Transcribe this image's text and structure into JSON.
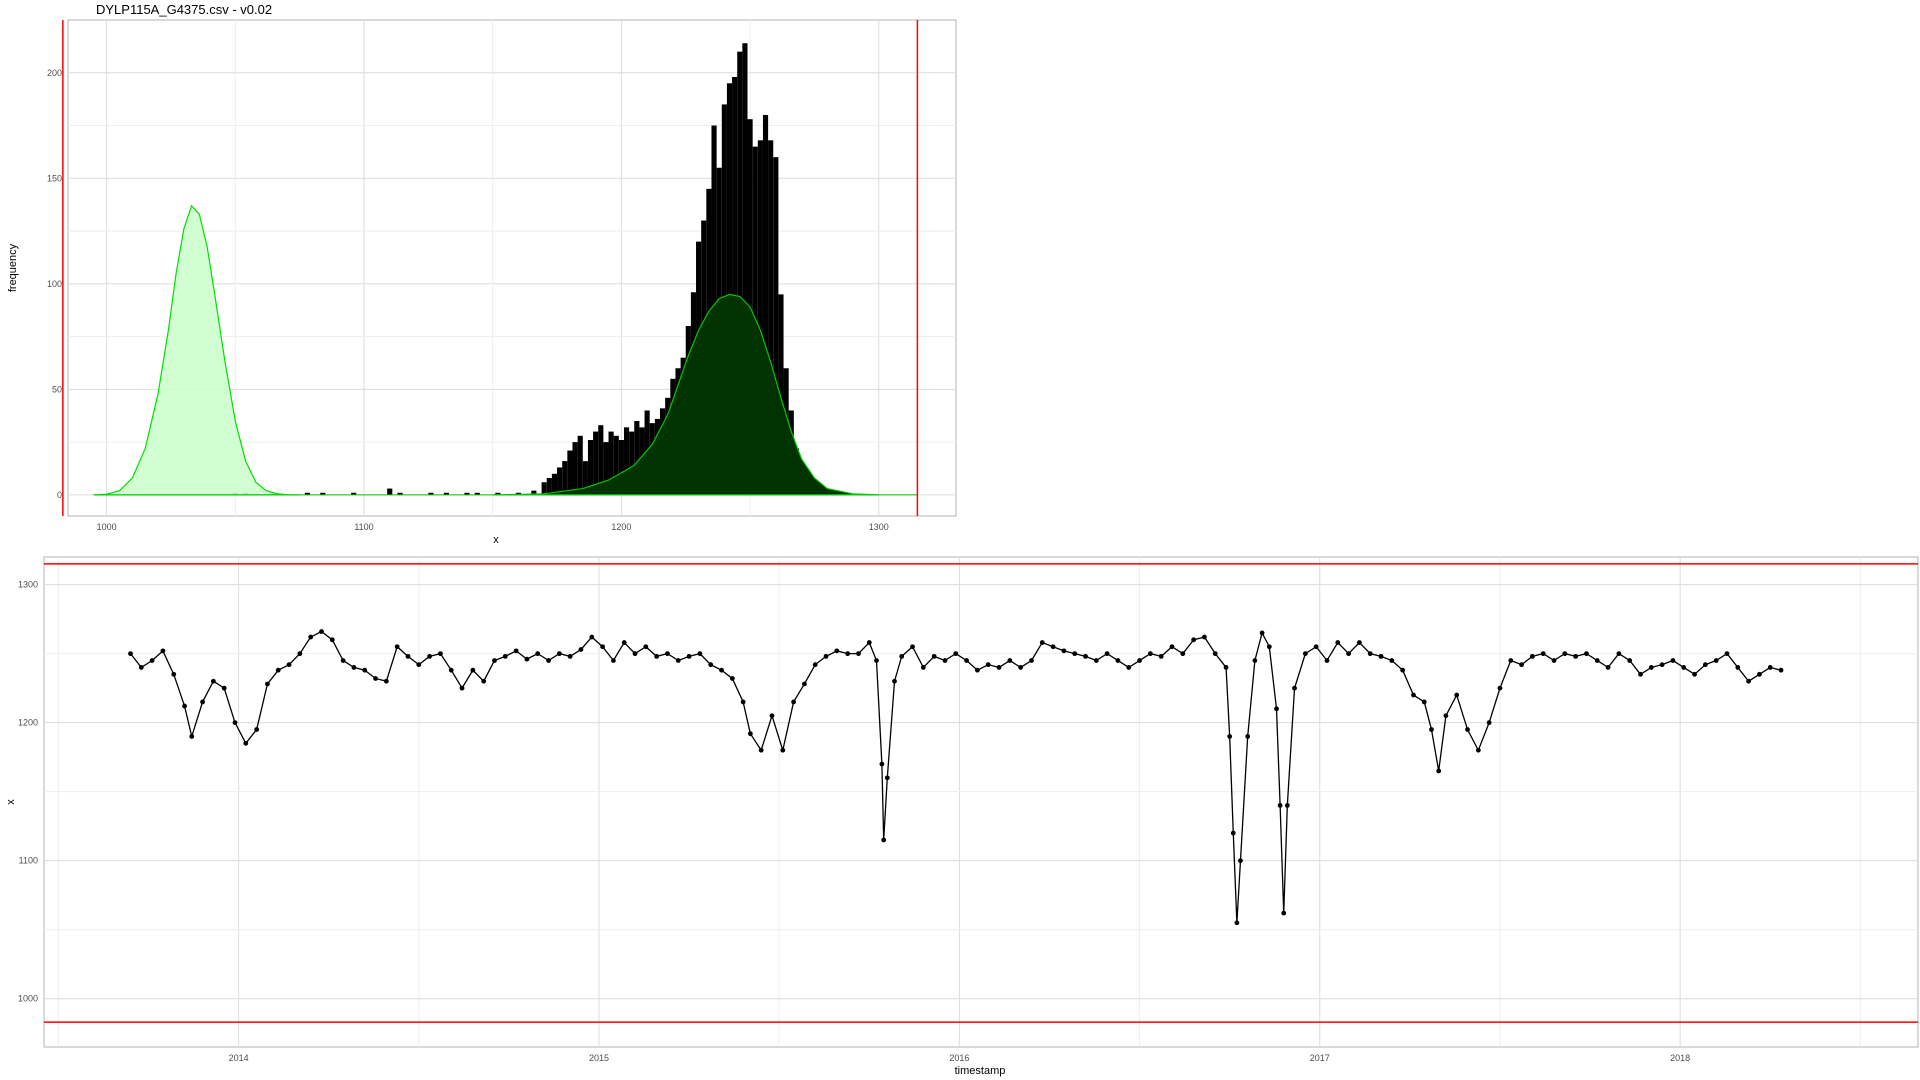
{
  "page_title": "DYLP115A_G4375.csv - v0.02",
  "colors": {
    "bars": "#000000",
    "density_low_fill": "#ccffcc",
    "density_low_line": "#00e000",
    "density_high_fill": "#003300",
    "density_high_line": "#00c800",
    "threshold": "#ff0000",
    "series": "#000000",
    "grid": "#dcdcdc",
    "panel_border": "#b3b3b3"
  },
  "chart_data": [
    {
      "type": "bar",
      "title": "DYLP115A_G4375.csv - v0.02",
      "xlabel": "x",
      "ylabel": "frequency",
      "xlim": [
        985,
        1330
      ],
      "ylim": [
        -10,
        225
      ],
      "x_ticks": [
        1000,
        1100,
        1200,
        1300
      ],
      "y_ticks": [
        0,
        50,
        100,
        150,
        200
      ],
      "grid": true,
      "bin_width": 2,
      "thresholds_x": [
        983,
        1315
      ],
      "bins": [
        [
          1050,
          1
        ],
        [
          1054,
          1
        ],
        [
          1064,
          1
        ],
        [
          1078,
          1
        ],
        [
          1084,
          1
        ],
        [
          1096,
          1
        ],
        [
          1110,
          3
        ],
        [
          1114,
          1
        ],
        [
          1126,
          1
        ],
        [
          1132,
          1
        ],
        [
          1140,
          1
        ],
        [
          1144,
          1
        ],
        [
          1152,
          1
        ],
        [
          1160,
          1
        ],
        [
          1166,
          2
        ],
        [
          1170,
          6
        ],
        [
          1172,
          8
        ],
        [
          1174,
          10
        ],
        [
          1176,
          13
        ],
        [
          1178,
          16
        ],
        [
          1180,
          21
        ],
        [
          1182,
          25
        ],
        [
          1184,
          28
        ],
        [
          1186,
          16
        ],
        [
          1188,
          26
        ],
        [
          1190,
          30
        ],
        [
          1192,
          33
        ],
        [
          1194,
          25
        ],
        [
          1196,
          30
        ],
        [
          1198,
          28
        ],
        [
          1200,
          26
        ],
        [
          1202,
          32
        ],
        [
          1204,
          30
        ],
        [
          1206,
          35
        ],
        [
          1208,
          32
        ],
        [
          1210,
          40
        ],
        [
          1212,
          34
        ],
        [
          1214,
          36
        ],
        [
          1216,
          41
        ],
        [
          1218,
          46
        ],
        [
          1220,
          55
        ],
        [
          1222,
          60
        ],
        [
          1224,
          65
        ],
        [
          1226,
          80
        ],
        [
          1228,
          96
        ],
        [
          1230,
          120
        ],
        [
          1232,
          130
        ],
        [
          1234,
          145
        ],
        [
          1236,
          175
        ],
        [
          1238,
          155
        ],
        [
          1240,
          185
        ],
        [
          1242,
          195
        ],
        [
          1244,
          198
        ],
        [
          1246,
          210
        ],
        [
          1248,
          214
        ],
        [
          1250,
          178
        ],
        [
          1252,
          165
        ],
        [
          1254,
          168
        ],
        [
          1256,
          180
        ],
        [
          1258,
          168
        ],
        [
          1260,
          160
        ],
        [
          1262,
          95
        ],
        [
          1264,
          60
        ],
        [
          1266,
          40
        ],
        [
          1268,
          22
        ],
        [
          1270,
          10
        ],
        [
          1272,
          4
        ],
        [
          1274,
          1
        ]
      ],
      "density_series": [
        {
          "name": "",
          "points": [
            [
              995,
              0
            ],
            [
              1000,
              0.3
            ],
            [
              1005,
              2
            ],
            [
              1010,
              8
            ],
            [
              1015,
              22
            ],
            [
              1020,
              48
            ],
            [
              1024,
              78
            ],
            [
              1027,
              105
            ],
            [
              1030,
              126
            ],
            [
              1033,
              137
            ],
            [
              1036,
              133
            ],
            [
              1039,
              118
            ],
            [
              1042,
              95
            ],
            [
              1046,
              63
            ],
            [
              1050,
              35
            ],
            [
              1054,
              16
            ],
            [
              1058,
              6
            ],
            [
              1062,
              2
            ],
            [
              1066,
              0.6
            ],
            [
              1070,
              0.1
            ],
            [
              1075,
              0
            ]
          ]
        },
        {
          "name": "",
          "points": [
            [
              1150,
              0
            ],
            [
              1170,
              0.5
            ],
            [
              1185,
              3
            ],
            [
              1195,
              7
            ],
            [
              1205,
              14
            ],
            [
              1212,
              24
            ],
            [
              1218,
              38
            ],
            [
              1222,
              52
            ],
            [
              1226,
              66
            ],
            [
              1230,
              78
            ],
            [
              1234,
              87
            ],
            [
              1238,
              93
            ],
            [
              1242,
              95
            ],
            [
              1246,
              94
            ],
            [
              1250,
              89
            ],
            [
              1254,
              78
            ],
            [
              1258,
              63
            ],
            [
              1262,
              46
            ],
            [
              1266,
              30
            ],
            [
              1270,
              17
            ],
            [
              1275,
              8
            ],
            [
              1280,
              3
            ],
            [
              1290,
              0.5
            ],
            [
              1300,
              0
            ]
          ]
        }
      ]
    },
    {
      "type": "line",
      "xlabel": "timestamp",
      "ylabel": "x",
      "xlim": [
        2013.46,
        2018.66
      ],
      "ylim": [
        965,
        1320
      ],
      "x_ticks": [
        2014,
        2015,
        2016,
        2017,
        2018
      ],
      "y_ticks": [
        1000,
        1100,
        1200,
        1300
      ],
      "grid": true,
      "thresholds_y": [
        983,
        1315
      ],
      "series": [
        {
          "name": "",
          "points": [
            [
              2013.7,
              1250
            ],
            [
              2013.73,
              1240
            ],
            [
              2013.76,
              1245
            ],
            [
              2013.79,
              1252
            ],
            [
              2013.82,
              1235
            ],
            [
              2013.85,
              1212
            ],
            [
              2013.87,
              1190
            ],
            [
              2013.9,
              1215
            ],
            [
              2013.93,
              1230
            ],
            [
              2013.96,
              1225
            ],
            [
              2013.99,
              1200
            ],
            [
              2014.02,
              1185
            ],
            [
              2014.05,
              1195
            ],
            [
              2014.08,
              1228
            ],
            [
              2014.11,
              1238
            ],
            [
              2014.14,
              1242
            ],
            [
              2014.17,
              1250
            ],
            [
              2014.2,
              1262
            ],
            [
              2014.23,
              1266
            ],
            [
              2014.26,
              1260
            ],
            [
              2014.29,
              1245
            ],
            [
              2014.32,
              1240
            ],
            [
              2014.35,
              1238
            ],
            [
              2014.38,
              1232
            ],
            [
              2014.41,
              1230
            ],
            [
              2014.44,
              1255
            ],
            [
              2014.47,
              1248
            ],
            [
              2014.5,
              1242
            ],
            [
              2014.53,
              1248
            ],
            [
              2014.56,
              1250
            ],
            [
              2014.59,
              1238
            ],
            [
              2014.62,
              1225
            ],
            [
              2014.65,
              1238
            ],
            [
              2014.68,
              1230
            ],
            [
              2014.71,
              1245
            ],
            [
              2014.74,
              1248
            ],
            [
              2014.77,
              1252
            ],
            [
              2014.8,
              1246
            ],
            [
              2014.83,
              1250
            ],
            [
              2014.86,
              1245
            ],
            [
              2014.89,
              1250
            ],
            [
              2014.92,
              1248
            ],
            [
              2014.95,
              1253
            ],
            [
              2014.98,
              1262
            ],
            [
              2015.01,
              1255
            ],
            [
              2015.04,
              1245
            ],
            [
              2015.07,
              1258
            ],
            [
              2015.1,
              1250
            ],
            [
              2015.13,
              1255
            ],
            [
              2015.16,
              1248
            ],
            [
              2015.19,
              1250
            ],
            [
              2015.22,
              1245
            ],
            [
              2015.25,
              1248
            ],
            [
              2015.28,
              1250
            ],
            [
              2015.31,
              1242
            ],
            [
              2015.34,
              1238
            ],
            [
              2015.37,
              1232
            ],
            [
              2015.4,
              1215
            ],
            [
              2015.42,
              1192
            ],
            [
              2015.45,
              1180
            ],
            [
              2015.48,
              1205
            ],
            [
              2015.51,
              1180
            ],
            [
              2015.54,
              1215
            ],
            [
              2015.57,
              1228
            ],
            [
              2015.6,
              1242
            ],
            [
              2015.63,
              1248
            ],
            [
              2015.66,
              1252
            ],
            [
              2015.69,
              1250
            ],
            [
              2015.72,
              1250
            ],
            [
              2015.75,
              1258
            ],
            [
              2015.77,
              1245
            ],
            [
              2015.785,
              1170
            ],
            [
              2015.79,
              1115
            ],
            [
              2015.8,
              1160
            ],
            [
              2015.82,
              1230
            ],
            [
              2015.84,
              1248
            ],
            [
              2015.87,
              1255
            ],
            [
              2015.9,
              1240
            ],
            [
              2015.93,
              1248
            ],
            [
              2015.96,
              1245
            ],
            [
              2015.99,
              1250
            ],
            [
              2016.02,
              1245
            ],
            [
              2016.05,
              1238
            ],
            [
              2016.08,
              1242
            ],
            [
              2016.11,
              1240
            ],
            [
              2016.14,
              1245
            ],
            [
              2016.17,
              1240
            ],
            [
              2016.2,
              1245
            ],
            [
              2016.23,
              1258
            ],
            [
              2016.26,
              1255
            ],
            [
              2016.29,
              1252
            ],
            [
              2016.32,
              1250
            ],
            [
              2016.35,
              1248
            ],
            [
              2016.38,
              1245
            ],
            [
              2016.41,
              1250
            ],
            [
              2016.44,
              1245
            ],
            [
              2016.47,
              1240
            ],
            [
              2016.5,
              1245
            ],
            [
              2016.53,
              1250
            ],
            [
              2016.56,
              1248
            ],
            [
              2016.59,
              1255
            ],
            [
              2016.62,
              1250
            ],
            [
              2016.65,
              1260
            ],
            [
              2016.68,
              1262
            ],
            [
              2016.71,
              1250
            ],
            [
              2016.74,
              1240
            ],
            [
              2016.75,
              1190
            ],
            [
              2016.76,
              1120
            ],
            [
              2016.77,
              1055
            ],
            [
              2016.78,
              1100
            ],
            [
              2016.8,
              1190
            ],
            [
              2016.82,
              1245
            ],
            [
              2016.84,
              1265
            ],
            [
              2016.86,
              1255
            ],
            [
              2016.88,
              1210
            ],
            [
              2016.89,
              1140
            ],
            [
              2016.9,
              1062
            ],
            [
              2016.91,
              1140
            ],
            [
              2016.93,
              1225
            ],
            [
              2016.96,
              1250
            ],
            [
              2016.99,
              1255
            ],
            [
              2017.02,
              1245
            ],
            [
              2017.05,
              1258
            ],
            [
              2017.08,
              1250
            ],
            [
              2017.11,
              1258
            ],
            [
              2017.14,
              1250
            ],
            [
              2017.17,
              1248
            ],
            [
              2017.2,
              1245
            ],
            [
              2017.23,
              1238
            ],
            [
              2017.26,
              1220
            ],
            [
              2017.29,
              1215
            ],
            [
              2017.31,
              1195
            ],
            [
              2017.33,
              1165
            ],
            [
              2017.35,
              1205
            ],
            [
              2017.38,
              1220
            ],
            [
              2017.41,
              1195
            ],
            [
              2017.44,
              1180
            ],
            [
              2017.47,
              1200
            ],
            [
              2017.5,
              1225
            ],
            [
              2017.53,
              1245
            ],
            [
              2017.56,
              1242
            ],
            [
              2017.59,
              1248
            ],
            [
              2017.62,
              1250
            ],
            [
              2017.65,
              1245
            ],
            [
              2017.68,
              1250
            ],
            [
              2017.71,
              1248
            ],
            [
              2017.74,
              1250
            ],
            [
              2017.77,
              1245
            ],
            [
              2017.8,
              1240
            ],
            [
              2017.83,
              1250
            ],
            [
              2017.86,
              1245
            ],
            [
              2017.89,
              1235
            ],
            [
              2017.92,
              1240
            ],
            [
              2017.95,
              1242
            ],
            [
              2017.98,
              1245
            ],
            [
              2018.01,
              1240
            ],
            [
              2018.04,
              1235
            ],
            [
              2018.07,
              1242
            ],
            [
              2018.1,
              1245
            ],
            [
              2018.13,
              1250
            ],
            [
              2018.16,
              1240
            ],
            [
              2018.19,
              1230
            ],
            [
              2018.22,
              1235
            ],
            [
              2018.25,
              1240
            ],
            [
              2018.28,
              1238
            ]
          ]
        }
      ]
    }
  ]
}
